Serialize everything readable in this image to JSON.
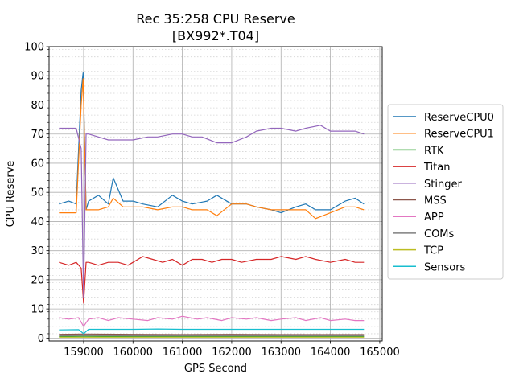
{
  "chart_data": {
    "type": "line",
    "title": "Rec 35:258 CPU Reserve",
    "subtitle": "[BX992*.T04]",
    "xlabel": "GPS Second",
    "ylabel": "CPU Reserve",
    "xlim": [
      158300,
      165050
    ],
    "ylim": [
      -1,
      100
    ],
    "xticks": [
      159000,
      160000,
      161000,
      162000,
      163000,
      164000,
      165000
    ],
    "yticks": [
      0,
      10,
      20,
      30,
      40,
      50,
      60,
      70,
      80,
      90,
      100
    ],
    "yminor_step": 2.5,
    "grid": true,
    "legend_position": "right",
    "series": [
      {
        "name": "ReserveCPU0",
        "color": "#1f77b4",
        "x": [
          158500,
          158700,
          158850,
          158950,
          158990,
          159050,
          159100,
          159300,
          159500,
          159600,
          159800,
          160000,
          160200,
          160500,
          160800,
          161000,
          161200,
          161500,
          161700,
          162000,
          162300,
          162500,
          162800,
          163000,
          163300,
          163500,
          163700,
          164000,
          164300,
          164500,
          164680
        ],
        "y": [
          46,
          47,
          46,
          85,
          91,
          44,
          47,
          49,
          46,
          55,
          47,
          47,
          46,
          45,
          49,
          47,
          46,
          47,
          49,
          46,
          46,
          45,
          44,
          43,
          45,
          46,
          44,
          44,
          47,
          48,
          46
        ]
      },
      {
        "name": "ReserveCPU1",
        "color": "#ff7f0e",
        "x": [
          158500,
          158700,
          158850,
          158950,
          158990,
          159050,
          159100,
          159300,
          159500,
          159600,
          159800,
          160000,
          160200,
          160500,
          160800,
          161000,
          161200,
          161500,
          161700,
          162000,
          162300,
          162500,
          162800,
          163000,
          163300,
          163500,
          163700,
          164000,
          164300,
          164500,
          164680
        ],
        "y": [
          43,
          43,
          43,
          80,
          89,
          44,
          44,
          44,
          45,
          48,
          45,
          45,
          45,
          44,
          45,
          45,
          44,
          44,
          42,
          46,
          46,
          45,
          44,
          44,
          44,
          44,
          41,
          43,
          45,
          45,
          44
        ]
      },
      {
        "name": "RTK",
        "color": "#2ca02c",
        "x": [
          158500,
          159000,
          160000,
          161000,
          162000,
          163000,
          164000,
          164680
        ],
        "y": [
          0.5,
          0.6,
          0.5,
          0.5,
          0.5,
          0.5,
          0.5,
          0.5
        ]
      },
      {
        "name": "Titan",
        "color": "#d62728",
        "x": [
          158500,
          158700,
          158850,
          158950,
          159000,
          159050,
          159100,
          159300,
          159500,
          159700,
          159900,
          160000,
          160200,
          160400,
          160600,
          160800,
          161000,
          161200,
          161400,
          161600,
          161800,
          162000,
          162200,
          162500,
          162800,
          163000,
          163300,
          163500,
          163700,
          164000,
          164300,
          164500,
          164680
        ],
        "y": [
          26,
          25,
          26,
          24,
          12,
          26,
          26,
          25,
          26,
          26,
          25,
          26,
          28,
          27,
          26,
          27,
          25,
          27,
          27,
          26,
          27,
          27,
          26,
          27,
          27,
          28,
          27,
          28,
          27,
          26,
          27,
          26,
          26
        ]
      },
      {
        "name": "Stinger",
        "color": "#9467bd",
        "x": [
          158500,
          158700,
          158850,
          158950,
          159000,
          159050,
          159100,
          159300,
          159500,
          159700,
          160000,
          160300,
          160500,
          160800,
          161000,
          161200,
          161400,
          161700,
          162000,
          162300,
          162500,
          162800,
          163000,
          163300,
          163500,
          163800,
          164000,
          164200,
          164500,
          164680
        ],
        "y": [
          72,
          72,
          72,
          65,
          14,
          70,
          70,
          69,
          68,
          68,
          68,
          69,
          69,
          70,
          70,
          69,
          69,
          67,
          67,
          69,
          71,
          72,
          72,
          71,
          72,
          73,
          71,
          71,
          71,
          70
        ]
      },
      {
        "name": "MSS",
        "color": "#8c564b",
        "x": [
          158500,
          159000,
          160000,
          161000,
          162000,
          163000,
          164000,
          164680
        ],
        "y": [
          1.3,
          1.4,
          1.3,
          1.2,
          1.3,
          1.2,
          1.2,
          1.2
        ]
      },
      {
        "name": "APP",
        "color": "#e377c2",
        "x": [
          158500,
          158700,
          158900,
          159000,
          159100,
          159300,
          159500,
          159700,
          160000,
          160300,
          160500,
          160800,
          161000,
          161300,
          161500,
          161800,
          162000,
          162300,
          162500,
          162800,
          163000,
          163300,
          163500,
          163800,
          164000,
          164300,
          164500,
          164680
        ],
        "y": [
          7,
          6.5,
          7,
          4,
          6.5,
          7,
          6,
          7,
          6.5,
          6,
          7,
          6.5,
          7.5,
          6.5,
          7,
          6,
          7,
          6.5,
          7,
          6,
          6.5,
          7,
          6,
          7,
          6,
          6.5,
          6,
          6
        ]
      },
      {
        "name": "COMs",
        "color": "#7f7f7f",
        "x": [
          158500,
          159000,
          160000,
          161000,
          162000,
          163000,
          164000,
          164680
        ],
        "y": [
          0.8,
          0.9,
          0.8,
          0.8,
          0.8,
          0.8,
          0.8,
          0.8
        ]
      },
      {
        "name": "TCP",
        "color": "#bcbd22",
        "x": [
          158500,
          159000,
          160000,
          161000,
          162000,
          163000,
          164000,
          164680
        ],
        "y": [
          0.3,
          0.3,
          0.3,
          0.3,
          0.3,
          0.3,
          0.3,
          0.3
        ]
      },
      {
        "name": "Sensors",
        "color": "#17becf",
        "x": [
          158500,
          158900,
          159000,
          159100,
          159500,
          160000,
          160500,
          161000,
          161500,
          162000,
          162500,
          163000,
          163500,
          164000,
          164500,
          164680
        ],
        "y": [
          2.8,
          2.9,
          1.5,
          3,
          3,
          3,
          3.1,
          3,
          3,
          3,
          3,
          3,
          3,
          3,
          3,
          3
        ]
      }
    ]
  }
}
